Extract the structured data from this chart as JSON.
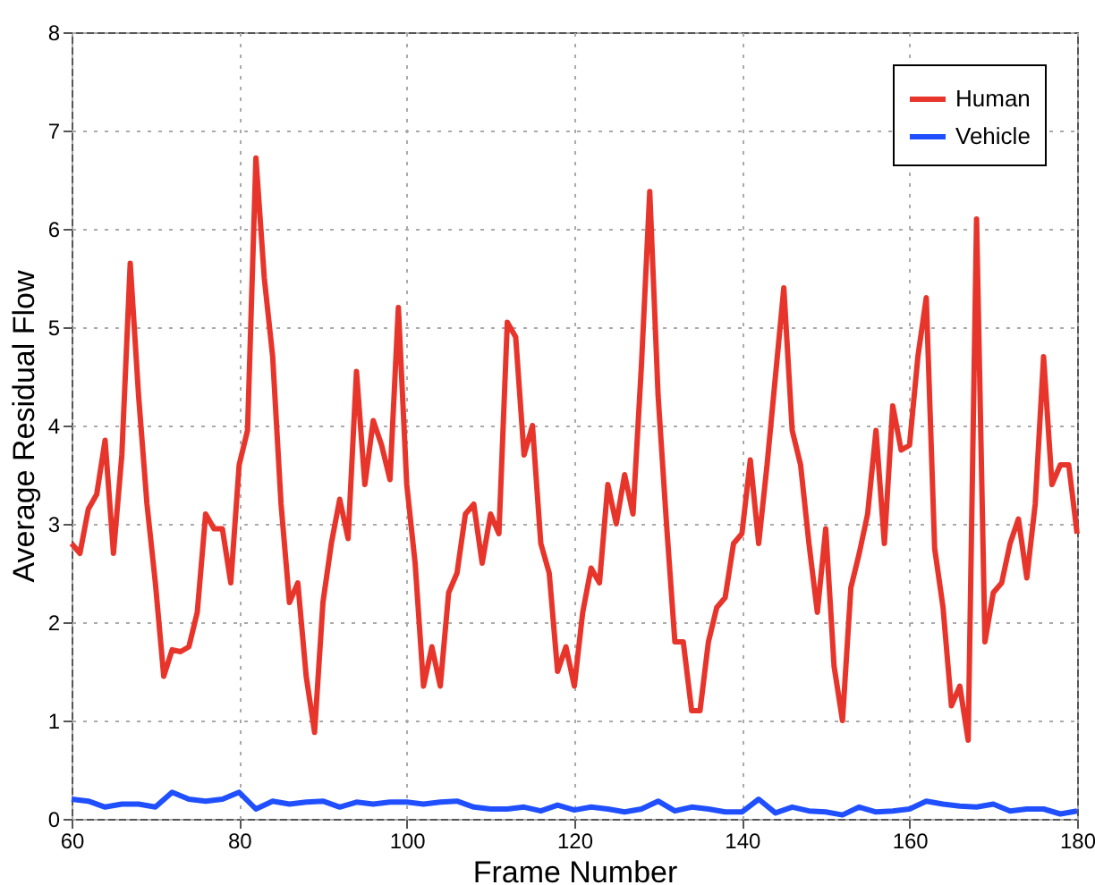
{
  "chart_data": {
    "type": "line",
    "xlabel": "Frame Number",
    "ylabel": "Average Residual Flow",
    "xlim": [
      60,
      180
    ],
    "xticks": [
      60,
      80,
      100,
      120,
      140,
      160,
      180
    ],
    "ylim": [
      0,
      8
    ],
    "yticks": [
      0,
      1,
      2,
      3,
      4,
      5,
      6,
      7,
      8
    ],
    "grid": true,
    "legend": "top right",
    "line_style": "solid",
    "marker": "none",
    "series": [
      {
        "name": "Human",
        "color": "#e8352b",
        "x": [
          60,
          61,
          62,
          63,
          64,
          65,
          66,
          67,
          68,
          69,
          70,
          71,
          72,
          73,
          74,
          75,
          76,
          77,
          78,
          79,
          80,
          81,
          82,
          83,
          84,
          85,
          86,
          87,
          88,
          89,
          90,
          91,
          92,
          93,
          94,
          95,
          96,
          97,
          98,
          99,
          100,
          101,
          102,
          103,
          104,
          105,
          106,
          107,
          108,
          109,
          110,
          111,
          112,
          113,
          114,
          115,
          116,
          117,
          118,
          119,
          120,
          121,
          122,
          123,
          124,
          125,
          126,
          127,
          128,
          129,
          130,
          131,
          132,
          133,
          134,
          135,
          136,
          137,
          138,
          139,
          140,
          141,
          142,
          143,
          144,
          145,
          146,
          147,
          148,
          149,
          150,
          151,
          152,
          153,
          154,
          155,
          156,
          157,
          158,
          159,
          160,
          161,
          162,
          163,
          164,
          165,
          166,
          167,
          168,
          169,
          170,
          171,
          172,
          173,
          174,
          175,
          176,
          177,
          178,
          179,
          180
        ],
        "values": [
          2.8,
          2.7,
          3.15,
          3.3,
          3.85,
          2.7,
          3.7,
          5.65,
          4.3,
          3.2,
          2.4,
          1.45,
          1.72,
          1.7,
          1.75,
          2.1,
          3.1,
          2.95,
          2.95,
          2.4,
          3.6,
          3.95,
          6.72,
          5.5,
          4.7,
          3.2,
          2.2,
          2.4,
          1.45,
          0.88,
          2.2,
          2.8,
          3.25,
          2.85,
          4.55,
          3.4,
          4.05,
          3.8,
          3.45,
          5.2,
          3.4,
          2.6,
          1.35,
          1.75,
          1.35,
          2.3,
          2.5,
          3.1,
          3.2,
          2.6,
          3.1,
          2.9,
          5.05,
          4.9,
          3.7,
          4.0,
          2.8,
          2.5,
          1.5,
          1.75,
          1.35,
          2.1,
          2.55,
          2.4,
          3.4,
          3.0,
          3.5,
          3.1,
          4.6,
          6.38,
          4.3,
          3.0,
          1.8,
          1.8,
          1.1,
          1.1,
          1.8,
          2.15,
          2.25,
          2.8,
          2.9,
          3.65,
          2.8,
          3.6,
          4.5,
          5.4,
          3.95,
          3.6,
          2.8,
          2.1,
          2.95,
          1.55,
          1.0,
          2.35,
          2.7,
          3.1,
          3.95,
          2.8,
          4.2,
          3.75,
          3.8,
          4.7,
          5.3,
          2.75,
          2.15,
          1.15,
          1.35,
          0.8,
          6.1,
          1.8,
          2.3,
          2.4,
          2.8,
          3.05,
          2.45,
          3.2,
          4.7,
          3.4,
          3.6,
          3.6,
          2.9
        ]
      },
      {
        "name": "Vehicle",
        "color": "#1f4fff",
        "x": [
          60,
          62,
          64,
          66,
          68,
          70,
          72,
          74,
          76,
          78,
          80,
          82,
          84,
          86,
          88,
          90,
          92,
          94,
          96,
          98,
          100,
          102,
          104,
          106,
          108,
          110,
          112,
          114,
          116,
          118,
          120,
          122,
          124,
          126,
          128,
          130,
          132,
          134,
          136,
          138,
          140,
          142,
          144,
          146,
          148,
          150,
          152,
          154,
          156,
          158,
          160,
          162,
          164,
          166,
          168,
          170,
          172,
          174,
          176,
          178,
          180
        ],
        "values": [
          0.2,
          0.18,
          0.12,
          0.15,
          0.15,
          0.12,
          0.27,
          0.2,
          0.18,
          0.2,
          0.27,
          0.1,
          0.18,
          0.15,
          0.17,
          0.18,
          0.12,
          0.17,
          0.15,
          0.17,
          0.17,
          0.15,
          0.17,
          0.18,
          0.12,
          0.1,
          0.1,
          0.12,
          0.08,
          0.14,
          0.09,
          0.12,
          0.1,
          0.07,
          0.1,
          0.18,
          0.08,
          0.12,
          0.1,
          0.07,
          0.07,
          0.2,
          0.06,
          0.12,
          0.08,
          0.07,
          0.04,
          0.12,
          0.07,
          0.08,
          0.1,
          0.18,
          0.15,
          0.13,
          0.12,
          0.15,
          0.08,
          0.1,
          0.1,
          0.05,
          0.08
        ]
      }
    ]
  }
}
